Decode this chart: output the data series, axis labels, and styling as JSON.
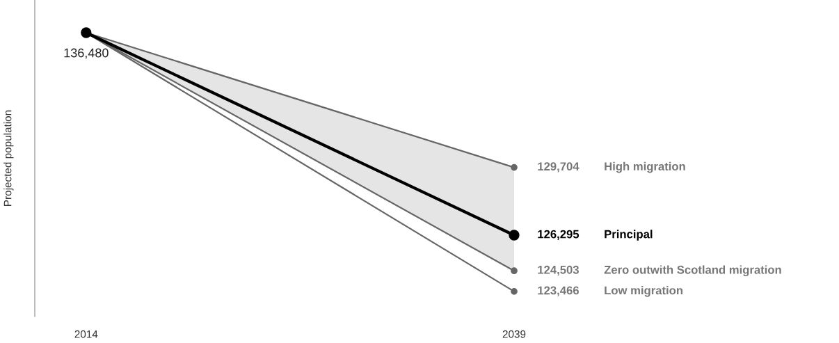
{
  "chart_data": {
    "type": "line",
    "ylabel": "Projected population",
    "x": [
      2014,
      2039
    ],
    "xlim": [
      2011,
      2039
    ],
    "xticks": [
      2014,
      2039
    ],
    "ylim": [
      122200,
      138125
    ],
    "tick_labels": "x",
    "grid": false,
    "legend": false,
    "marker": "circle",
    "line_style": "solid",
    "series": [
      {
        "name": "High migration",
        "color": "#666666",
        "values": [
          136480,
          129704
        ],
        "value_labels": [
          null,
          "129,704"
        ]
      },
      {
        "name": "Zero outwith Scotland migration",
        "color": "#666666",
        "values": [
          136480,
          124503
        ],
        "value_labels": [
          null,
          "124,503"
        ]
      },
      {
        "name": "Low migration",
        "color": "#666666",
        "values": [
          136480,
          123466
        ],
        "value_labels": [
          null,
          "123,466"
        ]
      },
      {
        "name": "Principal",
        "color": "#000000",
        "values": [
          136480,
          126295
        ],
        "lower": [
          136480,
          124503
        ],
        "upper": [
          136480,
          129704
        ],
        "value_labels": [
          "136,480",
          "126,295"
        ]
      }
    ]
  }
}
